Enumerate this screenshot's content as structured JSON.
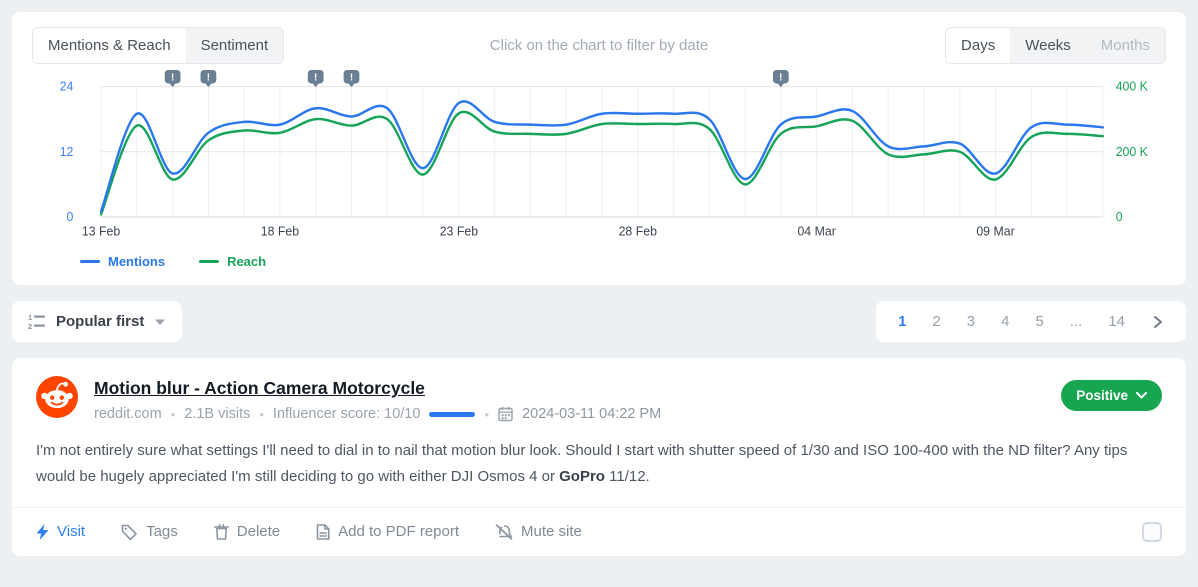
{
  "chart_card": {
    "tabs": [
      {
        "label": "Mentions & Reach"
      },
      {
        "label": "Sentiment"
      }
    ],
    "hint": "Click on the chart to filter by date",
    "range_toggle": [
      {
        "label": "Days"
      },
      {
        "label": "Weeks"
      },
      {
        "label": "Months"
      }
    ],
    "legend": [
      {
        "label": "Mentions",
        "color": "#2b78ee"
      },
      {
        "label": "Reach",
        "color": "#17a45a"
      }
    ]
  },
  "chart_data": {
    "type": "line",
    "x_start": "13 Feb",
    "x_end": "12 Mar",
    "x_tick_labels": [
      "13 Feb",
      "18 Feb",
      "23 Feb",
      "28 Feb",
      "04 Mar",
      "09 Mar"
    ],
    "x_tick_indices": [
      0,
      5,
      10,
      15,
      20,
      25
    ],
    "left_axis": {
      "label": "Mentions",
      "ticks": [
        "0",
        "12",
        "24"
      ],
      "min": 0,
      "max": 24,
      "color": "#3d7ff2"
    },
    "right_axis": {
      "label": "Reach",
      "ticks": [
        "0",
        "200 K",
        "400 K"
      ],
      "min": 0,
      "max": 400,
      "color": "#16a557"
    },
    "grid": true,
    "series": [
      {
        "name": "Reach",
        "axis": "right",
        "color": "#17a45a",
        "values": [
          8,
          280,
          115,
          235,
          265,
          258,
          300,
          280,
          300,
          130,
          318,
          262,
          255,
          255,
          285,
          285,
          285,
          270,
          100,
          255,
          278,
          295,
          192,
          192,
          200,
          115,
          245,
          255,
          248
        ]
      },
      {
        "name": "Mentions",
        "axis": "left",
        "color": "#2b78ee",
        "values": [
          1,
          19,
          8,
          15.5,
          17.5,
          17,
          20,
          18.5,
          20,
          9,
          21,
          17.5,
          17,
          17,
          19,
          19,
          19,
          18,
          7,
          17,
          18.5,
          19.5,
          13,
          13,
          13.5,
          8,
          16.5,
          17,
          16.5
        ]
      }
    ],
    "warning_marker_indices": [
      2,
      3,
      6,
      7,
      19
    ],
    "marker_color": "#6a7e94"
  },
  "toolbar": {
    "sort_label": "Popular first",
    "pagination": [
      "1",
      "2",
      "3",
      "4",
      "5",
      "...",
      "14"
    ],
    "active_page": "1"
  },
  "mention": {
    "title": "Motion blur - Action Camera Motorcycle",
    "source": "reddit.com",
    "visits": "2.1B visits",
    "influencer": "Influencer score: 10/10",
    "date": "2024-03-11 04:22 PM",
    "sentiment": "Positive",
    "sentiment_color": "#17a64f",
    "body_pre": "I'm not entirely sure what settings I'll need to dial in to nail that motion blur look. Should I start with shutter speed of 1/30 and ISO 100-400 with the ND filter? Any tips would be hugely appreciated I'm still deciding to go with either DJI Osmos 4 or ",
    "body_bold": "GoPro",
    "body_post": " 11/12.",
    "actions": {
      "visit": "Visit",
      "tags": "Tags",
      "delete": "Delete",
      "pdf": "Add to PDF report",
      "mute": "Mute site"
    }
  }
}
